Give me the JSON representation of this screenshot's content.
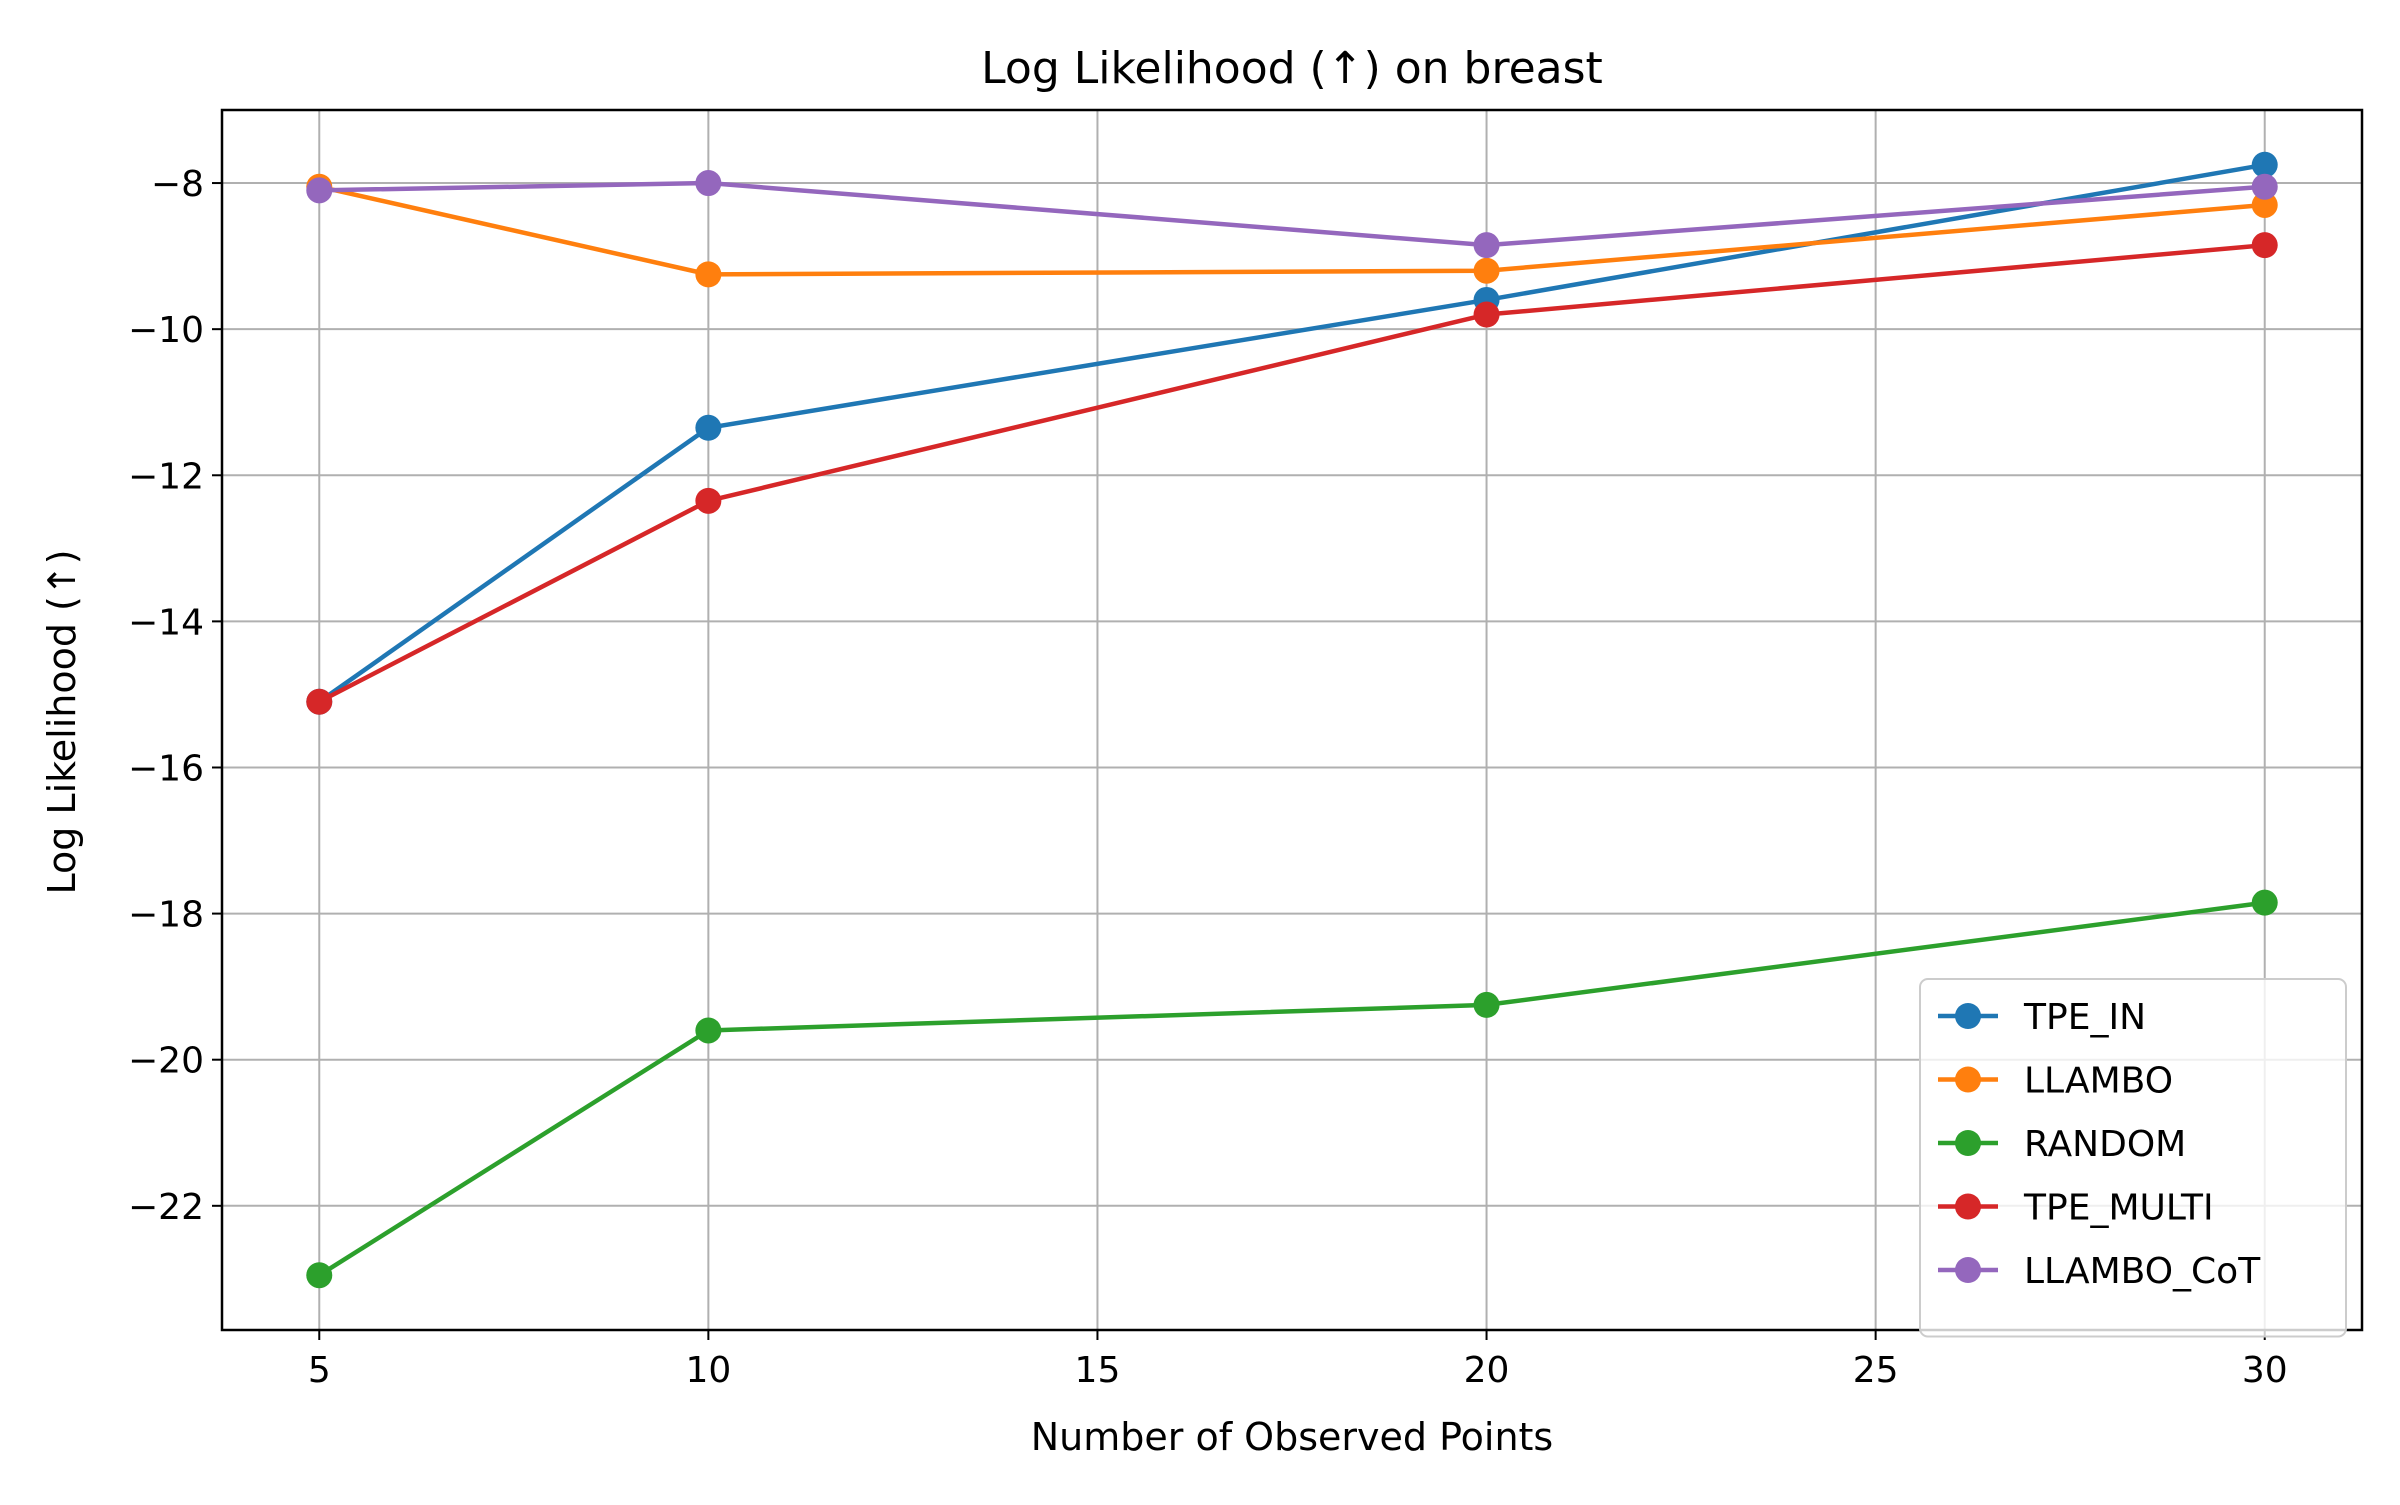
{
  "chart_data": {
    "type": "line",
    "title": "Log Likelihood (↑) on breast",
    "xlabel": "Number of Observed Points",
    "ylabel": "Log Likelihood (↑)",
    "x": [
      5,
      10,
      20,
      30
    ],
    "xlim": [
      3.75,
      31.25
    ],
    "ylim": [
      -23.7,
      -7.0
    ],
    "xticks": [
      5,
      10,
      15,
      20,
      25,
      30
    ],
    "xtick_labels": [
      "5",
      "10",
      "15",
      "20",
      "25",
      "30"
    ],
    "yticks": [
      -22,
      -20,
      -18,
      -16,
      -14,
      -12,
      -10,
      -8
    ],
    "ytick_labels": [
      "−22",
      "−20",
      "−18",
      "−16",
      "−14",
      "−12",
      "−10",
      "−8"
    ],
    "grid": true,
    "legend_position": "lower-right",
    "series": [
      {
        "name": "TPE_IN",
        "color": "#1f77b4",
        "values": [
          -15.1,
          -11.35,
          -9.6,
          -7.75
        ]
      },
      {
        "name": "LLAMBO",
        "color": "#ff7f0e",
        "values": [
          -8.05,
          -9.25,
          -9.2,
          -8.3
        ]
      },
      {
        "name": "RANDOM",
        "color": "#2ca02c",
        "values": [
          -22.95,
          -19.6,
          -19.25,
          -17.85
        ]
      },
      {
        "name": "TPE_MULTI",
        "color": "#d62728",
        "values": [
          -15.1,
          -12.35,
          -9.8,
          -8.85
        ]
      },
      {
        "name": "LLAMBO_CoT",
        "color": "#9467bd",
        "values": [
          -8.1,
          -8.0,
          -8.85,
          -8.05
        ]
      }
    ]
  }
}
